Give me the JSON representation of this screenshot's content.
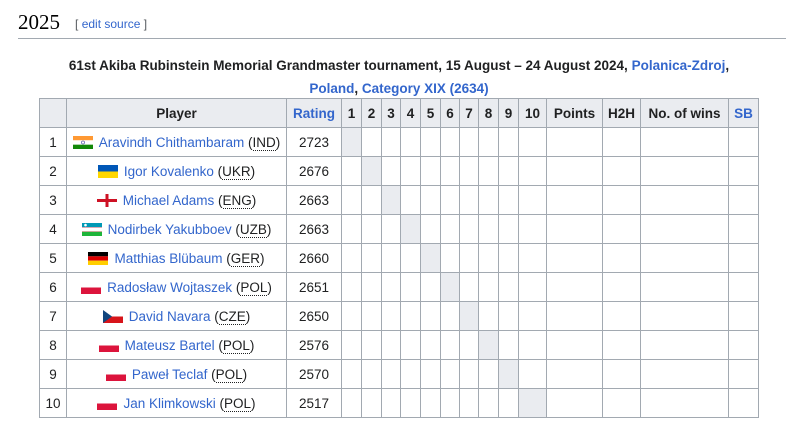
{
  "section": {
    "year": "2025",
    "edit_open": "[",
    "edit_label": "edit source",
    "edit_close": "]"
  },
  "caption": {
    "text": "61st Akiba Rubinstein Memorial Grandmaster tournament, 15 August – 24 August 2024, ",
    "link_city": "Polanica-Zdroj",
    "comma": ",",
    "link_country": "Poland",
    "comma2": ", ",
    "link_category": "Category XIX (2634)"
  },
  "table": {
    "headers": {
      "num": "",
      "player": "Player",
      "rating": "Rating",
      "rounds": [
        "1",
        "2",
        "3",
        "4",
        "5",
        "6",
        "7",
        "8",
        "9",
        "10"
      ],
      "points": "Points",
      "h2h": "H2H",
      "wins": "No. of wins",
      "sb": "SB"
    },
    "rows": [
      {
        "num": "1",
        "name": "Aravindh Chithambaram",
        "country": "IND",
        "rating": "2723",
        "flag": "india"
      },
      {
        "num": "2",
        "name": "Igor Kovalenko",
        "country": "UKR",
        "rating": "2676",
        "flag": "ukraine"
      },
      {
        "num": "3",
        "name": "Michael Adams",
        "country": "ENG",
        "rating": "2663",
        "flag": "england"
      },
      {
        "num": "4",
        "name": "Nodirbek Yakubboev",
        "country": "UZB",
        "rating": "2663",
        "flag": "uzbekistan"
      },
      {
        "num": "5",
        "name": "Matthias Blübaum",
        "country": "GER",
        "rating": "2660",
        "flag": "germany"
      },
      {
        "num": "6",
        "name": "Radosław Wojtaszek",
        "country": "POL",
        "rating": "2651",
        "flag": "poland"
      },
      {
        "num": "7",
        "name": "David Navara",
        "country": "CZE",
        "rating": "2650",
        "flag": "czechia"
      },
      {
        "num": "8",
        "name": "Mateusz Bartel",
        "country": "POL",
        "rating": "2576",
        "flag": "poland"
      },
      {
        "num": "9",
        "name": "Paweł Teclaf",
        "country": "POL",
        "rating": "2570",
        "flag": "poland"
      },
      {
        "num": "10",
        "name": "Jan Klimkowski",
        "country": "POL",
        "rating": "2517",
        "flag": "poland"
      }
    ]
  }
}
